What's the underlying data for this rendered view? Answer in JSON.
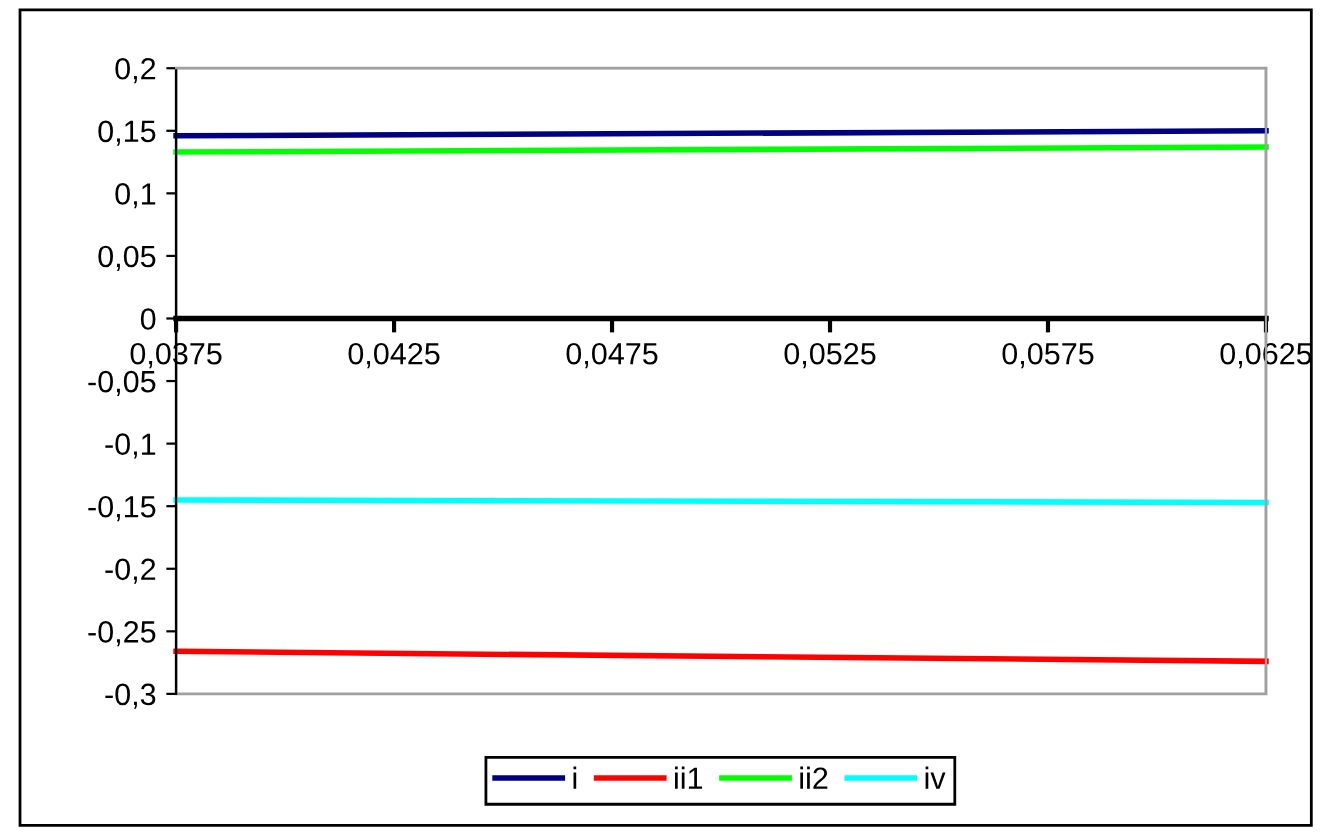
{
  "chart_data": {
    "type": "line",
    "x": [
      0.0375,
      0.0625
    ],
    "series": [
      {
        "name": "i",
        "color": "#000080",
        "values": [
          0.146,
          0.15
        ]
      },
      {
        "name": "ii1",
        "color": "#ff0000",
        "values": [
          -0.266,
          -0.274
        ]
      },
      {
        "name": "ii2",
        "color": "#00ff00",
        "values": [
          0.133,
          0.137
        ]
      },
      {
        "name": "iv",
        "color": "#00ffff",
        "values": [
          -0.145,
          -0.147
        ]
      }
    ],
    "xlim": [
      0.0375,
      0.0625
    ],
    "xticks": [
      {
        "value": 0.0375,
        "label": "0,0375"
      },
      {
        "value": 0.0425,
        "label": "0,0425"
      },
      {
        "value": 0.0475,
        "label": "0,0475"
      },
      {
        "value": 0.0525,
        "label": "0,0525"
      },
      {
        "value": 0.0575,
        "label": "0,0575"
      },
      {
        "value": 0.0625,
        "label": "0,0625"
      }
    ],
    "ylim": [
      -0.3,
      0.2
    ],
    "yticks": [
      {
        "value": -0.3,
        "label": "-0,3"
      },
      {
        "value": -0.25,
        "label": "-0,25"
      },
      {
        "value": -0.2,
        "label": "-0,2"
      },
      {
        "value": -0.15,
        "label": "-0,15"
      },
      {
        "value": -0.1,
        "label": "-0,1"
      },
      {
        "value": -0.05,
        "label": "-0,05"
      },
      {
        "value": 0,
        "label": "0"
      },
      {
        "value": 0.05,
        "label": "0,05"
      },
      {
        "value": 0.1,
        "label": "0,1"
      },
      {
        "value": 0.15,
        "label": "0,15"
      },
      {
        "value": 0.2,
        "label": "0,2"
      }
    ],
    "grid": false,
    "legend": "bottom",
    "marker": "none",
    "line_style": "solid"
  }
}
